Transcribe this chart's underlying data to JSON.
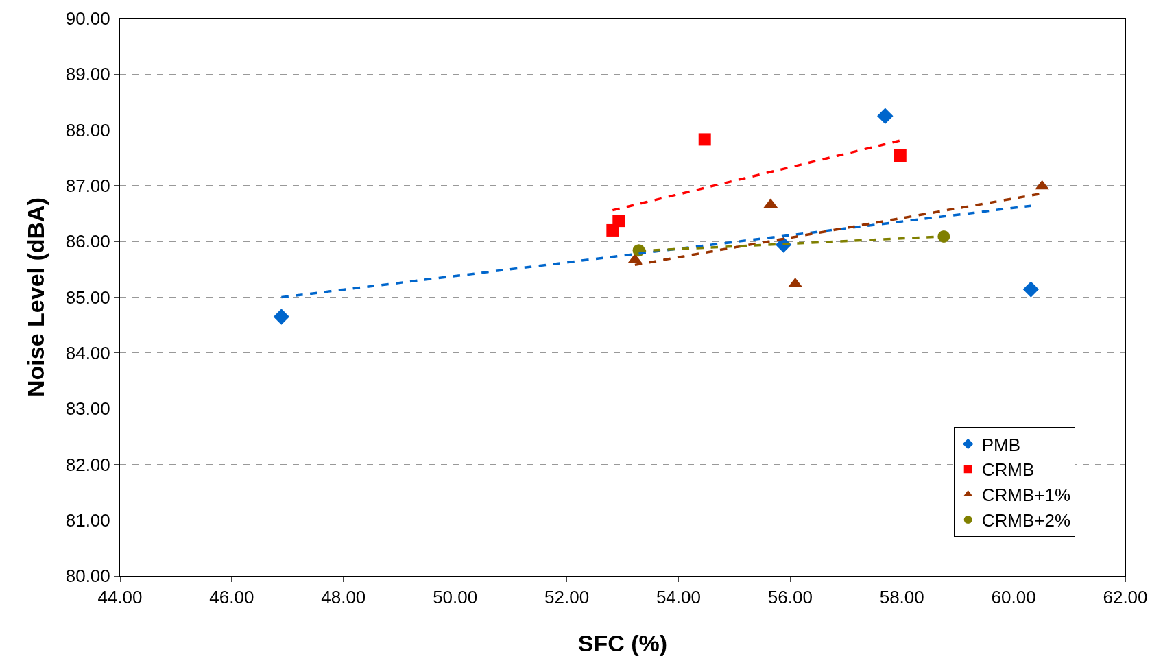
{
  "chart_data": {
    "type": "scatter",
    "xlabel": "SFC (%)",
    "ylabel": "Noise Level (dBA)",
    "xlim": [
      44,
      62
    ],
    "ylim": [
      80,
      90
    ],
    "xticks": [
      {
        "value": 44,
        "label": "44.00"
      },
      {
        "value": 46,
        "label": "46.00"
      },
      {
        "value": 48,
        "label": "48.00"
      },
      {
        "value": 50,
        "label": "50.00"
      },
      {
        "value": 52,
        "label": "52.00"
      },
      {
        "value": 54,
        "label": "54.00"
      },
      {
        "value": 56,
        "label": "56.00"
      },
      {
        "value": 58,
        "label": "58.00"
      },
      {
        "value": 60,
        "label": "60.00"
      },
      {
        "value": 62,
        "label": "62.00"
      }
    ],
    "yticks": [
      {
        "value": 80,
        "label": "80.00"
      },
      {
        "value": 81,
        "label": "81.00"
      },
      {
        "value": 82,
        "label": "82.00"
      },
      {
        "value": 83,
        "label": "83.00"
      },
      {
        "value": 84,
        "label": "84.00"
      },
      {
        "value": 85,
        "label": "85.00"
      },
      {
        "value": 86,
        "label": "86.00"
      },
      {
        "value": 87,
        "label": "87.00"
      },
      {
        "value": 88,
        "label": "88.00"
      },
      {
        "value": 89,
        "label": "89.00"
      },
      {
        "value": 90,
        "label": "90.00"
      }
    ],
    "grid": "y",
    "legend": "bottom right",
    "series": [
      {
        "name": "PMB",
        "color": "#0066cc",
        "marker": "diamond",
        "x": [
          46.89,
          55.88,
          57.7,
          60.31
        ],
        "values": [
          84.65,
          85.94,
          88.25,
          85.14
        ]
      },
      {
        "name": "CRMB",
        "color": "#ff0000",
        "marker": "square",
        "x": [
          52.82,
          52.93,
          54.47,
          57.97
        ],
        "values": [
          86.2,
          86.37,
          87.83,
          87.54
        ]
      },
      {
        "name": "CRMB+1%",
        "color": "#993300",
        "marker": "triangle",
        "x": [
          53.22,
          55.65,
          56.09,
          60.51
        ],
        "values": [
          85.67,
          86.66,
          85.24,
          86.99
        ]
      },
      {
        "name": "CRMB+2%",
        "color": "#808000",
        "marker": "circle",
        "x": [
          53.29,
          58.75
        ],
        "values": [
          85.84,
          86.09
        ]
      },
      {
        "type": "line",
        "color": "#0066cc",
        "line_style": "dashed",
        "marker": "none",
        "x": [
          46.89,
          60.31
        ],
        "values": [
          85.0,
          86.64
        ]
      },
      {
        "type": "line",
        "color": "#ff0000",
        "line_style": "dashed",
        "marker": "none",
        "x": [
          52.82,
          57.97
        ],
        "values": [
          86.56,
          87.81
        ]
      },
      {
        "type": "line",
        "color": "#993300",
        "line_style": "dashed",
        "marker": "none",
        "x": [
          53.22,
          60.51
        ],
        "values": [
          85.58,
          86.86
        ]
      },
      {
        "type": "line",
        "color": "#808000",
        "line_style": "dashed",
        "marker": "none",
        "x": [
          53.29,
          58.75
        ],
        "values": [
          85.83,
          86.09
        ]
      }
    ]
  }
}
